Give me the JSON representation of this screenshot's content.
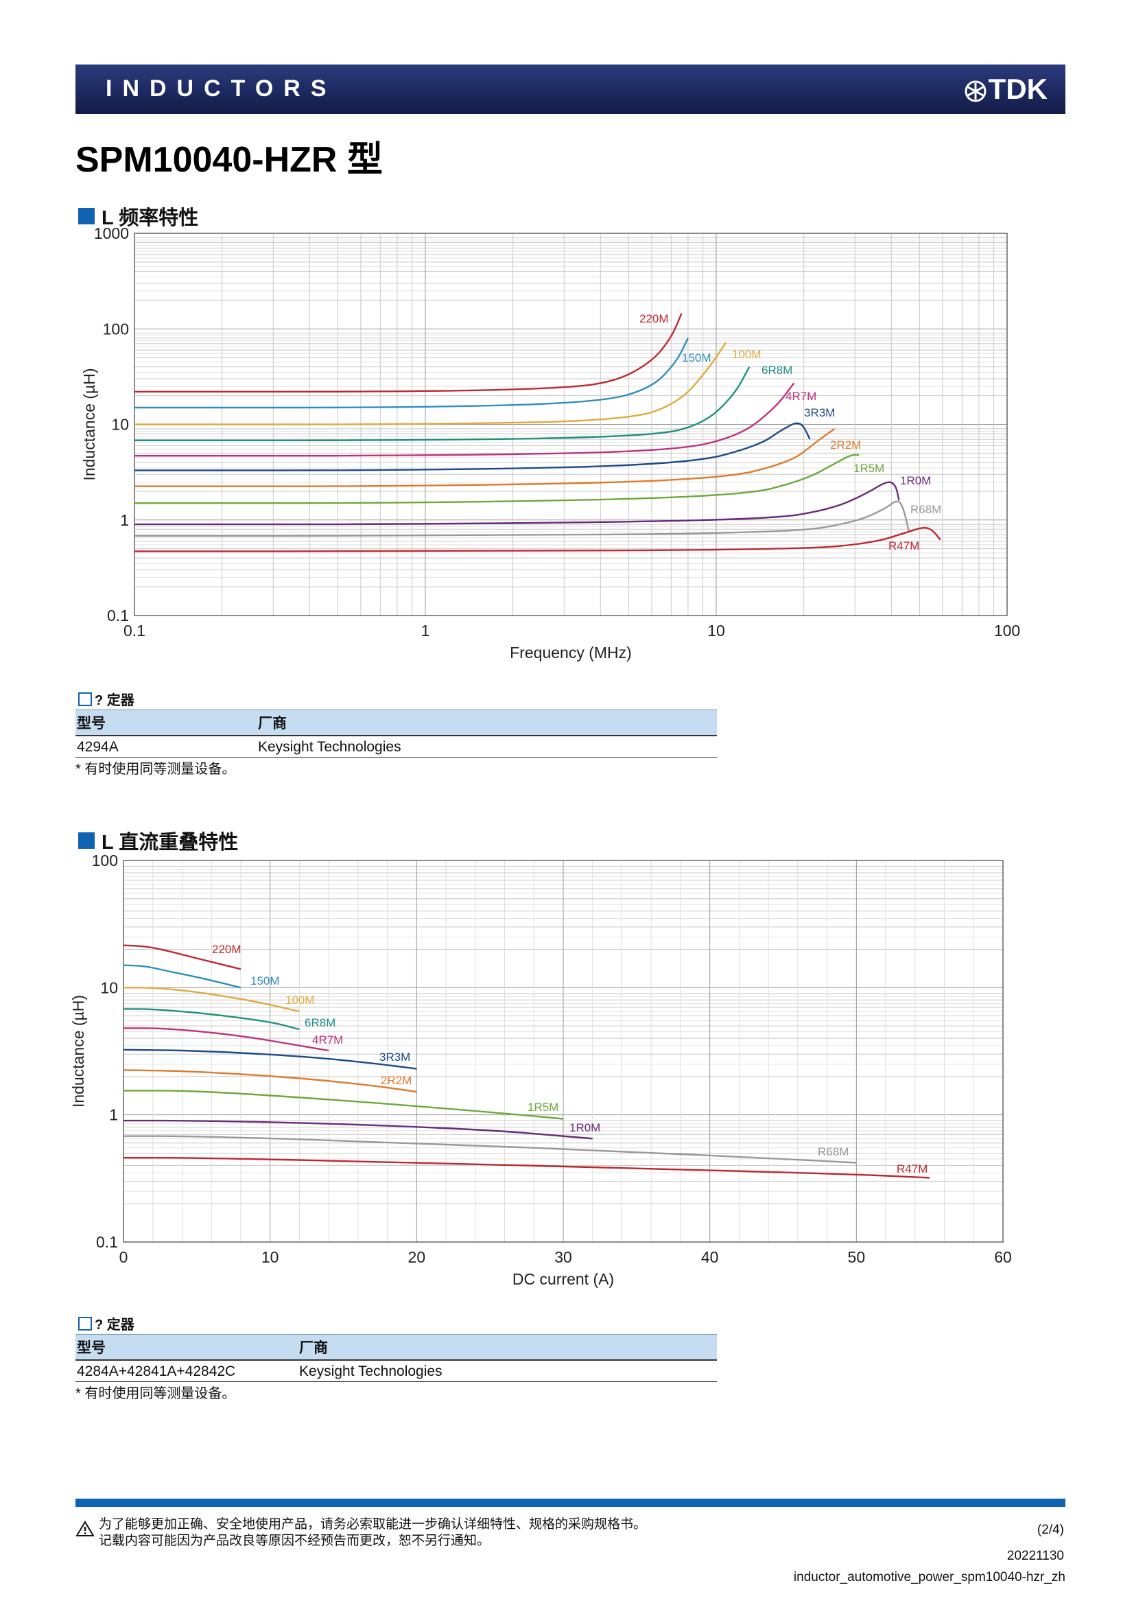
{
  "header": {
    "series": "INDUCTORS",
    "brand": "TDK"
  },
  "title": "SPM10040-HZR 型",
  "section1": {
    "heading": "L 频率特性",
    "equipment_heading": "? 定器",
    "table_headers": [
      "型号",
      "厂商"
    ],
    "table_rows": [
      [
        "4294A",
        "Keysight Technologies"
      ]
    ],
    "note": "* 有时使用同等测量设备。"
  },
  "section2": {
    "heading": "L 直流重叠特性",
    "equipment_heading": "? 定器",
    "table_headers": [
      "型号",
      "厂商"
    ],
    "table_rows": [
      [
        "4284A+42841A+42842C",
        "Keysight Technologies"
      ]
    ],
    "note": "* 有时使用同等测量设备。"
  },
  "footer": {
    "warning_lines": [
      "为了能够更加正确、安全地使用产品，请务必索取能进一步确认详细特性、规格的采购规格书。",
      "记载内容可能因为产品改良等原因不经预告而更改，恕不另行通知。"
    ],
    "page": "(2/4)",
    "date": "20221130",
    "filename": "inductor_automotive_power_spm10040-hzr_zh"
  },
  "chart_data": [
    {
      "type": "line",
      "xlabel": "Frequency (MHz)",
      "ylabel": "Inductance (µH)",
      "x_scale": "log",
      "y_scale": "log",
      "xlim": [
        0.1,
        100
      ],
      "ylim": [
        0.1,
        1000
      ],
      "x_ticks": [
        "0.1",
        "1",
        "10",
        "100"
      ],
      "y_ticks": [
        "0.1",
        "1",
        "10",
        "100",
        "1000"
      ],
      "grid": true,
      "series": [
        {
          "name": "220M",
          "color": "#c0272d",
          "points": [
            [
              0.1,
              22
            ],
            [
              1,
              22
            ],
            [
              3,
              24
            ],
            [
              4.5,
              28
            ],
            [
              6,
              45
            ],
            [
              7,
              80
            ],
            [
              7.6,
              145
            ]
          ]
        },
        {
          "name": "150M",
          "color": "#2e8ec0",
          "points": [
            [
              0.1,
              15
            ],
            [
              1,
              15
            ],
            [
              4,
              17
            ],
            [
              6,
              24
            ],
            [
              7.3,
              45
            ],
            [
              8,
              80
            ]
          ]
        },
        {
          "name": "100M",
          "color": "#e0a93a",
          "points": [
            [
              0.1,
              10
            ],
            [
              1,
              10
            ],
            [
              5,
              11
            ],
            [
              7.5,
              17
            ],
            [
              9.5,
              40
            ],
            [
              10.8,
              72
            ]
          ]
        },
        {
          "name": "6R8M",
          "color": "#1e9080",
          "points": [
            [
              0.1,
              6.8
            ],
            [
              1,
              6.8
            ],
            [
              6,
              7.5
            ],
            [
              9,
              10
            ],
            [
              11.5,
              20
            ],
            [
              13,
              40
            ]
          ]
        },
        {
          "name": "4R7M",
          "color": "#c0307a",
          "points": [
            [
              0.1,
              4.7
            ],
            [
              1,
              4.7
            ],
            [
              7,
              5.2
            ],
            [
              12,
              7.5
            ],
            [
              16,
              15
            ],
            [
              18.5,
              27
            ]
          ]
        },
        {
          "name": "3R3M",
          "color": "#1c4b88",
          "points": [
            [
              0.1,
              3.3
            ],
            [
              1,
              3.3
            ],
            [
              8,
              3.8
            ],
            [
              14,
              6
            ],
            [
              17,
              9
            ],
            [
              19.5,
              11
            ],
            [
              21,
              7
            ]
          ]
        },
        {
          "name": "2R2M",
          "color": "#e07a28",
          "points": [
            [
              0.1,
              2.25
            ],
            [
              1,
              2.25
            ],
            [
              10,
              2.6
            ],
            [
              18,
              4
            ],
            [
              22,
              6.5
            ],
            [
              25.5,
              9
            ]
          ]
        },
        {
          "name": "1R5M",
          "color": "#6aaa3a",
          "points": [
            [
              0.1,
              1.5
            ],
            [
              1,
              1.5
            ],
            [
              12,
              1.75
            ],
            [
              20,
              2.6
            ],
            [
              26,
              4
            ],
            [
              29,
              4.8
            ],
            [
              31,
              4.8
            ]
          ]
        },
        {
          "name": "1R0M",
          "color": "#6a2a7a",
          "points": [
            [
              0.1,
              0.9
            ],
            [
              1,
              0.9
            ],
            [
              15,
              1
            ],
            [
              25,
              1.3
            ],
            [
              33,
              1.9
            ],
            [
              39,
              2.6
            ],
            [
              41.5,
              2.3
            ],
            [
              42.5,
              1.6
            ]
          ]
        },
        {
          "name": "R68M",
          "color": "#999999",
          "points": [
            [
              0.1,
              0.68
            ],
            [
              1,
              0.68
            ],
            [
              18,
              0.73
            ],
            [
              30,
              0.95
            ],
            [
              38,
              1.3
            ],
            [
              42,
              1.65
            ],
            [
              44,
              1.35
            ],
            [
              46,
              0.75
            ]
          ]
        },
        {
          "name": "R47M",
          "color": "#c0272d",
          "points": [
            [
              0.1,
              0.47
            ],
            [
              1,
              0.47
            ],
            [
              20,
              0.49
            ],
            [
              35,
              0.58
            ],
            [
              45,
              0.74
            ],
            [
              52,
              0.85
            ],
            [
              55.5,
              0.78
            ],
            [
              59,
              0.62
            ]
          ]
        }
      ],
      "label_positions": []
    },
    {
      "type": "line",
      "xlabel": "DC current (A)",
      "ylabel": "Inductance (µH)",
      "x_scale": "linear",
      "y_scale": "log",
      "xlim": [
        0,
        60
      ],
      "ylim": [
        0.1,
        100
      ],
      "x_ticks": [
        "0",
        "10",
        "20",
        "30",
        "40",
        "50",
        "60"
      ],
      "y_ticks": [
        "0.1",
        "1",
        "10",
        "100"
      ],
      "grid": true,
      "series": [
        {
          "name": "220M",
          "color": "#c0272d",
          "points": [
            [
              0,
              21.5
            ],
            [
              1.5,
              21.2
            ],
            [
              3,
              19.5
            ],
            [
              5,
              17
            ],
            [
              8,
              14
            ]
          ]
        },
        {
          "name": "150M",
          "color": "#2e8ec0",
          "points": [
            [
              0,
              15
            ],
            [
              1.5,
              14.8
            ],
            [
              3,
              13.5
            ],
            [
              5.5,
              11.8
            ],
            [
              8,
              10
            ]
          ]
        },
        {
          "name": "100M",
          "color": "#e0a93a",
          "points": [
            [
              0,
              10
            ],
            [
              2,
              10
            ],
            [
              5,
              9.3
            ],
            [
              9,
              7.8
            ],
            [
              12,
              6.5
            ]
          ]
        },
        {
          "name": "6R8M",
          "color": "#1e9080",
          "points": [
            [
              0,
              6.8
            ],
            [
              2,
              6.8
            ],
            [
              6,
              6.2
            ],
            [
              10,
              5.4
            ],
            [
              12,
              4.7
            ]
          ]
        },
        {
          "name": "4R7M",
          "color": "#c0307a",
          "points": [
            [
              0,
              4.8
            ],
            [
              3,
              4.8
            ],
            [
              8,
              4.2
            ],
            [
              12,
              3.5
            ],
            [
              14,
              3.2
            ]
          ]
        },
        {
          "name": "3R3M",
          "color": "#1c4b88",
          "points": [
            [
              0,
              3.25
            ],
            [
              5,
              3.2
            ],
            [
              12,
              2.9
            ],
            [
              17,
              2.55
            ],
            [
              20,
              2.3
            ]
          ]
        },
        {
          "name": "2R2M",
          "color": "#e07a28",
          "points": [
            [
              0,
              2.25
            ],
            [
              5,
              2.2
            ],
            [
              12,
              1.95
            ],
            [
              17,
              1.7
            ],
            [
              20,
              1.52
            ]
          ]
        },
        {
          "name": "1R5M",
          "color": "#6aaa3a",
          "points": [
            [
              0,
              1.55
            ],
            [
              5,
              1.55
            ],
            [
              15,
              1.3
            ],
            [
              25,
              1.05
            ],
            [
              30,
              0.93
            ]
          ]
        },
        {
          "name": "1R0M",
          "color": "#6a2a7a",
          "points": [
            [
              0,
              0.9
            ],
            [
              5,
              0.9
            ],
            [
              15,
              0.85
            ],
            [
              25,
              0.76
            ],
            [
              30,
              0.68
            ],
            [
              32,
              0.65
            ]
          ]
        },
        {
          "name": "R68M",
          "color": "#999999",
          "points": [
            [
              0,
              0.68
            ],
            [
              5,
              0.68
            ],
            [
              20,
              0.6
            ],
            [
              35,
              0.51
            ],
            [
              45,
              0.45
            ],
            [
              50,
              0.42
            ]
          ]
        },
        {
          "name": "R47M",
          "color": "#c0272d",
          "points": [
            [
              0,
              0.46
            ],
            [
              5,
              0.46
            ],
            [
              20,
              0.42
            ],
            [
              35,
              0.38
            ],
            [
              50,
              0.34
            ],
            [
              55,
              0.32
            ]
          ]
        }
      ]
    }
  ]
}
